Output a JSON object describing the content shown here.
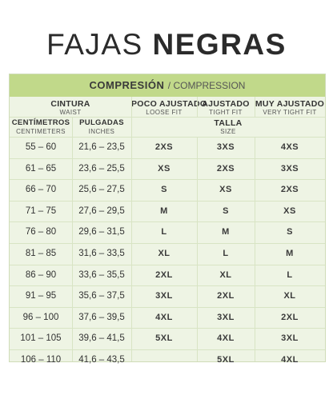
{
  "title": {
    "light": "FAJAS",
    "bold": "NEGRAS"
  },
  "compression": {
    "es": "COMPRESIÓN",
    "en": "/ COMPRESSION"
  },
  "headers": {
    "cintura": {
      "es": "CINTURA",
      "en": "WAIST"
    },
    "poco": {
      "es": "POCO AJUSTADO",
      "en": "LOOSE FIT"
    },
    "ajustado": {
      "es": "AJUSTADO",
      "en": "TIGHT FIT"
    },
    "muy": {
      "es": "MUY AJUSTADO",
      "en": "VERY TIGHT FIT"
    },
    "cm": {
      "es": "CENTÍMETROS",
      "en": "CENTIMETERS"
    },
    "in": {
      "es": "PULGADAS",
      "en": "INCHES"
    },
    "talla": {
      "es": "TALLA",
      "en": "SIZE"
    }
  },
  "rows": [
    {
      "cm": "55 – 60",
      "in": "21,6 – 23,5",
      "loose": "2XS",
      "tight": "3XS",
      "very": "4XS"
    },
    {
      "cm": "61 – 65",
      "in": "23,6 – 25,5",
      "loose": "XS",
      "tight": "2XS",
      "very": "3XS"
    },
    {
      "cm": "66 – 70",
      "in": "25,6 – 27,5",
      "loose": "S",
      "tight": "XS",
      "very": "2XS"
    },
    {
      "cm": "71 – 75",
      "in": "27,6 – 29,5",
      "loose": "M",
      "tight": "S",
      "very": "XS"
    },
    {
      "cm": "76 – 80",
      "in": "29,6 – 31,5",
      "loose": "L",
      "tight": "M",
      "very": "S"
    },
    {
      "cm": "81 – 85",
      "in": "31,6 – 33,5",
      "loose": "XL",
      "tight": "L",
      "very": "M"
    },
    {
      "cm": "86 – 90",
      "in": "33,6 – 35,5",
      "loose": "2XL",
      "tight": "XL",
      "very": "L"
    },
    {
      "cm": "91 – 95",
      "in": "35,6 – 37,5",
      "loose": "3XL",
      "tight": "2XL",
      "very": "XL"
    },
    {
      "cm": "96 – 100",
      "in": "37,6 – 39,5",
      "loose": "4XL",
      "tight": "3XL",
      "very": "2XL"
    },
    {
      "cm": "101 – 105",
      "in": "39,6 – 41,5",
      "loose": "5XL",
      "tight": "4XL",
      "very": "3XL"
    },
    {
      "cm": "106 – 110",
      "in": "41,6 – 43,5",
      "loose": "",
      "tight": "5XL",
      "very": "4XL"
    }
  ]
}
